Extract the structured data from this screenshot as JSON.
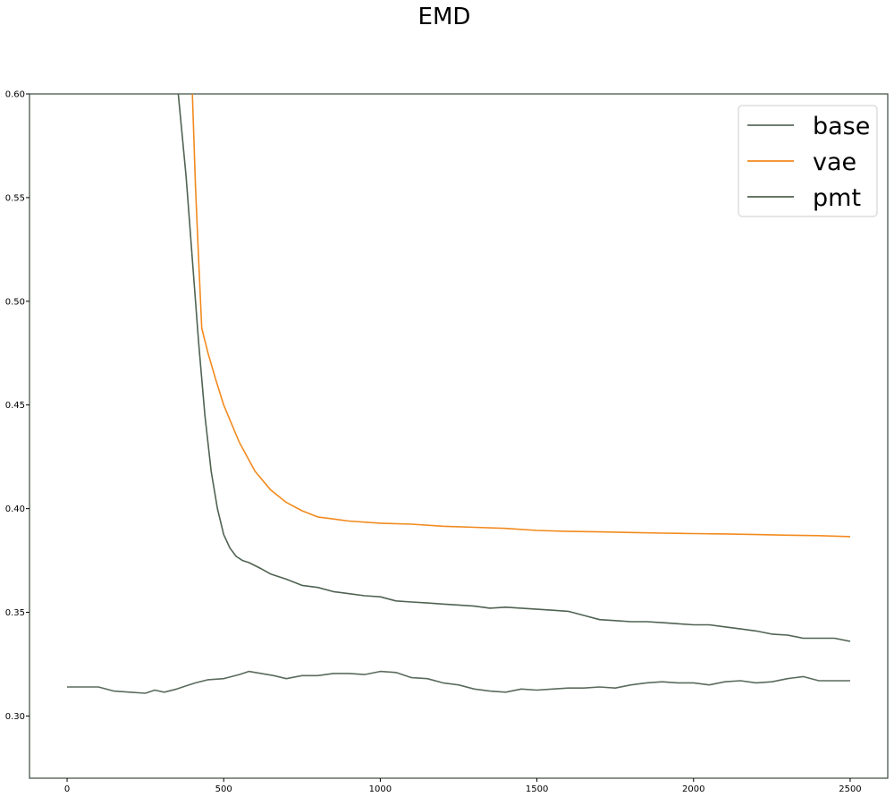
{
  "chart_data": {
    "type": "line",
    "title": "EMD",
    "xlabel": "",
    "ylabel": "",
    "xlim": [
      -120,
      2620
    ],
    "ylim": [
      0.27,
      0.6
    ],
    "xticks": [
      0,
      500,
      1000,
      1500,
      2000,
      2500
    ],
    "yticks": [
      0.3,
      0.35,
      0.4,
      0.45,
      0.5,
      0.55,
      0.6
    ],
    "ytick_labels": [
      "0.30",
      "0.35",
      "0.40",
      "0.45",
      "0.50",
      "0.55",
      "0.60"
    ],
    "grid": false,
    "legend_position": "upper right",
    "series": [
      {
        "name": "base",
        "color": "#5a6b5c",
        "x": [
          0,
          50,
          100,
          150,
          200,
          250,
          280,
          310,
          350,
          380,
          410,
          450,
          500,
          550,
          580,
          620,
          660,
          700,
          750,
          800,
          850,
          900,
          950,
          1000,
          1050,
          1100,
          1150,
          1200,
          1250,
          1300,
          1350,
          1400,
          1450,
          1500,
          1550,
          1600,
          1650,
          1700,
          1750,
          1800,
          1850,
          1900,
          1950,
          2000,
          2050,
          2100,
          2150,
          2200,
          2250,
          2300,
          2350,
          2400,
          2450,
          2500
        ],
        "y": [
          0.314,
          0.314,
          0.314,
          0.312,
          0.3115,
          0.311,
          0.3125,
          0.3115,
          0.313,
          0.3145,
          0.316,
          0.3175,
          0.318,
          0.32,
          0.3215,
          0.3205,
          0.3195,
          0.318,
          0.3195,
          0.3195,
          0.3205,
          0.3205,
          0.32,
          0.3215,
          0.321,
          0.3185,
          0.318,
          0.316,
          0.315,
          0.313,
          0.312,
          0.3115,
          0.313,
          0.3125,
          0.313,
          0.3135,
          0.3135,
          0.314,
          0.3135,
          0.315,
          0.316,
          0.3165,
          0.316,
          0.316,
          0.315,
          0.3165,
          0.317,
          0.316,
          0.3165,
          0.318,
          0.319,
          0.317,
          0.317,
          0.317
        ]
      },
      {
        "name": "vae",
        "color": "#f28a1e",
        "x": [
          400,
          410,
          420,
          430,
          450,
          475,
          500,
          550,
          600,
          650,
          700,
          750,
          800,
          850,
          900,
          1000,
          1100,
          1200,
          1300,
          1400,
          1500,
          1600,
          1700,
          1800,
          1900,
          2000,
          2100,
          2200,
          2300,
          2400,
          2500
        ],
        "y": [
          0.6,
          0.555,
          0.52,
          0.487,
          0.475,
          0.462,
          0.45,
          0.432,
          0.418,
          0.409,
          0.403,
          0.399,
          0.396,
          0.395,
          0.394,
          0.393,
          0.3925,
          0.3915,
          0.391,
          0.3905,
          0.3895,
          0.389,
          0.3888,
          0.3885,
          0.3882,
          0.388,
          0.3878,
          0.3875,
          0.3872,
          0.387,
          0.3865
        ]
      },
      {
        "name": "pmt",
        "color": "#4f6351",
        "x": [
          355,
          380,
          400,
          420,
          440,
          460,
          480,
          500,
          520,
          540,
          560,
          580,
          620,
          650,
          700,
          750,
          800,
          850,
          900,
          950,
          1000,
          1050,
          1100,
          1150,
          1200,
          1250,
          1300,
          1350,
          1400,
          1450,
          1500,
          1550,
          1600,
          1650,
          1700,
          1750,
          1800,
          1850,
          1900,
          1950,
          2000,
          2050,
          2100,
          2150,
          2200,
          2250,
          2300,
          2350,
          2400,
          2450,
          2500
        ],
        "y": [
          0.6,
          0.56,
          0.52,
          0.48,
          0.445,
          0.418,
          0.4,
          0.3875,
          0.381,
          0.377,
          0.375,
          0.374,
          0.371,
          0.3685,
          0.366,
          0.363,
          0.362,
          0.36,
          0.359,
          0.358,
          0.3575,
          0.3555,
          0.355,
          0.3545,
          0.354,
          0.3535,
          0.353,
          0.352,
          0.3525,
          0.352,
          0.3515,
          0.351,
          0.3505,
          0.3485,
          0.3465,
          0.346,
          0.3455,
          0.3455,
          0.345,
          0.3445,
          0.344,
          0.344,
          0.343,
          0.342,
          0.341,
          0.3395,
          0.339,
          0.3375,
          0.3375,
          0.3375,
          0.336
        ]
      }
    ]
  }
}
